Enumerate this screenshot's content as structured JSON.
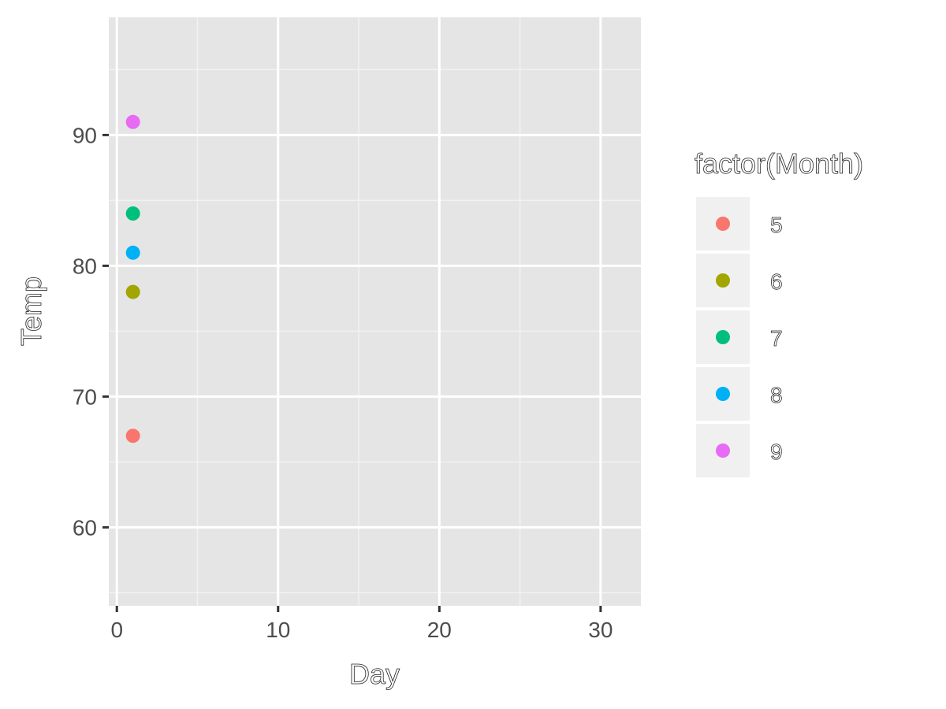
{
  "chart_data": {
    "type": "scatter",
    "title": "",
    "xlabel": "Day",
    "ylabel": "Temp",
    "xlim": [
      -0.5,
      32.5
    ],
    "ylim": [
      54,
      99
    ],
    "x_ticks": [
      0,
      10,
      20,
      30
    ],
    "y_ticks": [
      60,
      70,
      80,
      90
    ],
    "grid": true,
    "legend": {
      "title": "factor(Month)",
      "placement": "right"
    },
    "series": [
      {
        "name": "5",
        "color": "#F8766D",
        "points": [
          {
            "x": 1,
            "y": 67
          }
        ]
      },
      {
        "name": "6",
        "color": "#A3A500",
        "points": [
          {
            "x": 1,
            "y": 78
          }
        ]
      },
      {
        "name": "7",
        "color": "#00BF7D",
        "points": [
          {
            "x": 1,
            "y": 84
          }
        ]
      },
      {
        "name": "8",
        "color": "#00B0F6",
        "points": [
          {
            "x": 1,
            "y": 81
          }
        ]
      },
      {
        "name": "9",
        "color": "#E76BF3",
        "points": [
          {
            "x": 1,
            "y": 91
          }
        ]
      }
    ]
  }
}
